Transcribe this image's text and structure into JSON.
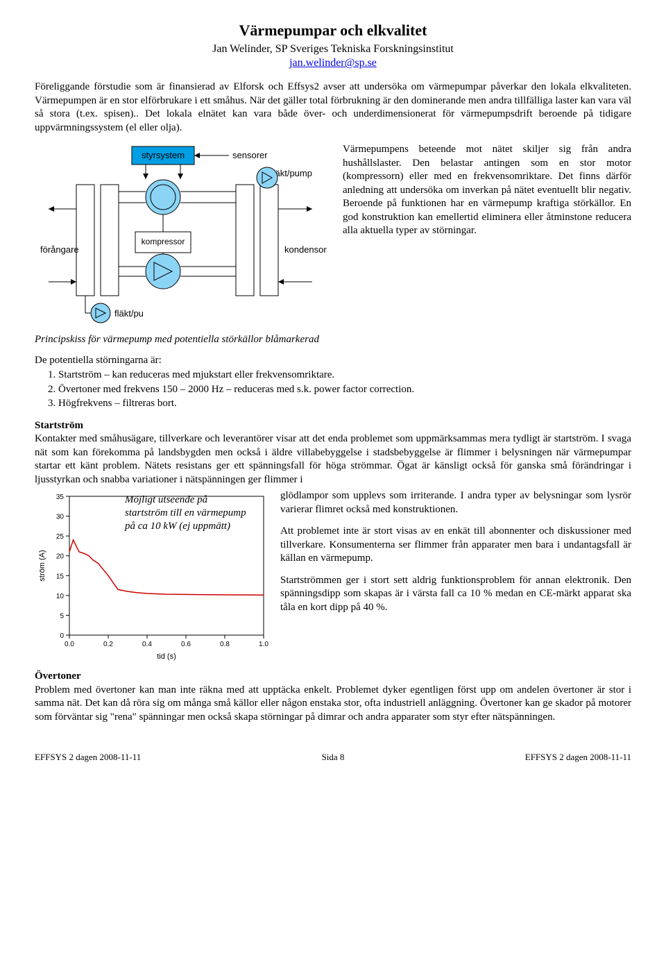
{
  "title": "Värmepumpar och elkvalitet",
  "author": "Jan Welinder, SP Sveriges Tekniska Forskningsinstitut",
  "email": "jan.welinder@sp.se",
  "intro": "Föreliggande förstudie som är finansierad av Elforsk och Effsys2 avser att undersöka om värmepumpar påverkar den lokala elkvaliteten. Värmepumpen är en stor elförbrukare i ett småhus. När det gäller total förbrukning är den dominerande men andra tillfälliga laster kan vara väl så stora (t.ex. spisen).. Det lokala elnätet kan vara både över- och underdimensionerat för värmepumpsdrift beroende på tidigare uppvärmningssystem (el eller olja).",
  "diagram": {
    "labels": {
      "styrsystem": "styrsystem",
      "sensorer": "sensorer",
      "flakt_pump_top": "fläkt/pump",
      "forangare": "förångare",
      "kompressor": "kompressor",
      "kondensor": "kondensor",
      "flakt_pu": "fläkt/pu"
    },
    "colors": {
      "box_fill": "#009fe3",
      "circle_fill": "#8cd4f5",
      "stroke": "#000000",
      "bg": "#ffffff"
    },
    "caption": "Principskiss för värmepump med potentiella störkällor blåmarkerad"
  },
  "right_para": "Värmepumpens beteende mot nätet skiljer sig från andra hushållslaster. Den belastar antingen som en stor motor (kompressorn) eller med en frekvensomriktare. Det finns därför anledning att undersöka om inverkan på nätet eventuellt blir negativ. Beroende på funktionen har en värmepump kraftiga störkällor. En god konstruktion kan emellertid eliminera eller åtminstone reducera alla aktuella typer av störningar.",
  "list_intro": "De potentiella störningarna är:",
  "list": [
    "Startström – kan reduceras med mjukstart eller frekvensomriktare.",
    "Övertoner med frekvens 150 – 2000 Hz – reduceras med s.k. power factor correction.",
    "Högfrekvens – filtreras bort."
  ],
  "start_heading": "Startström",
  "start_para_pre": "Kontakter med småhusägare, tillverkare och leverantörer visar att det enda problemet som uppmärksammas mera tydligt är startström. I svaga nät som kan förekomma på landsbygden men också i äldre villabebyggelse i stadsbebyggelse är flimmer i belysningen när värmepumpar startar ett känt problem. Nätets resistans ger ett spänningsfall för höga strömmar. Ögat är känsligt också för ganska små förändringar i ljusstyrkan och snabba variationer i nätspänningen ger flimmer i",
  "right_para2a": "glödlampor som upplevs som irriterande. I andra typer av belysningar som lysrör varierar flimret också med konstruktionen.",
  "right_para2b": "Att problemet inte är stort visas av en enkät till abonnenter och diskussioner med tillverkare. Konsumenterna ser flimmer från apparater men bara i undantagsfall är källan en värmepump.",
  "right_para2c": "Startströmmen ger i stort sett aldrig funktionsproblem för annan elektronik. Den spänningsdipp som skapas är i värsta fall ca 10 % medan en CE-märkt apparat ska tåla en kort dipp på 40 %.",
  "chart": {
    "caption": "Möjligt utseende på startström till en värmepump på ca 10 kW (ej uppmätt)",
    "xlabel": "tid (s)",
    "ylabel": "ström (A)",
    "xlim": [
      0.0,
      1.0
    ],
    "ylim": [
      0,
      35
    ],
    "xticks": [
      0.0,
      0.2,
      0.4,
      0.6,
      0.8,
      1.0
    ],
    "yticks": [
      0,
      5,
      10,
      15,
      20,
      25,
      30,
      35
    ],
    "line_color": "#cc0000",
    "line_width": 1.5,
    "grid_color": "#000000",
    "bg_color": "#ffffff",
    "data": {
      "x": [
        0.0,
        0.02,
        0.04,
        0.05,
        0.08,
        0.1,
        0.12,
        0.15,
        0.2,
        0.25,
        0.3,
        0.35,
        0.4,
        0.5,
        0.7,
        1.0
      ],
      "y": [
        21,
        24,
        22,
        21,
        20.5,
        20,
        19,
        18,
        15,
        11.5,
        11,
        10.7,
        10.5,
        10.3,
        10.2,
        10.1
      ]
    }
  },
  "over_heading": "Övertoner",
  "over_para": "Problem med övertoner kan man inte räkna med att upptäcka enkelt. Problemet dyker egentligen först upp om andelen övertoner är stor i samma nät. Det kan då röra sig om många små källor eller någon enstaka stor, ofta industriell anläggning. Övertoner kan ge skador på motorer som förväntar sig \"rena\" spänningar men också skapa störningar på dimrar och andra apparater som styr efter nätspänningen.",
  "footer": {
    "left": "EFFSYS 2 dagen 2008-11-11",
    "center": "Sida 8",
    "right": "EFFSYS 2 dagen 2008-11-11"
  }
}
